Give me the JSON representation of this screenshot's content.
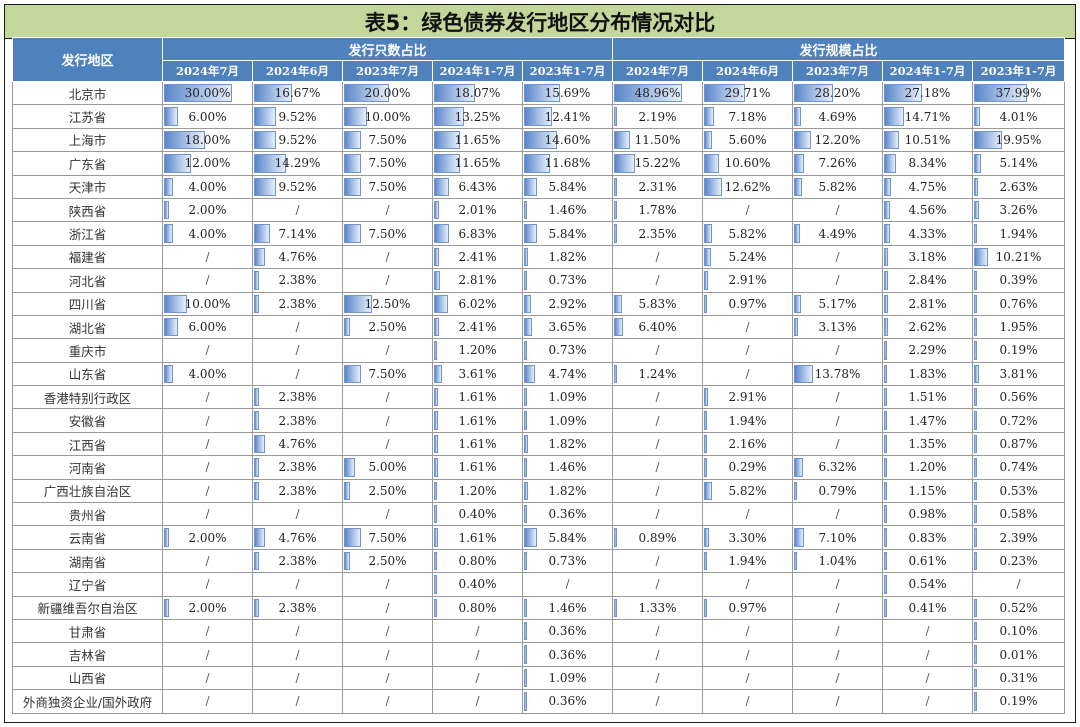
{
  "title": "表5：绿色债券发行地区分布情况对比",
  "header": {
    "region_label": "发行地区",
    "groups": [
      "发行只数占比",
      "发行规模占比"
    ],
    "periods": [
      "2024年7月",
      "2024年6月",
      "2023年7月",
      "2024年1-7月",
      "2023年1-7月"
    ]
  },
  "max": {
    "count": 30.0,
    "scale": 48.96
  },
  "rows": [
    {
      "region": "北京市",
      "count": [
        "30.00%",
        "16.67%",
        "20.00%",
        "18.07%",
        "15.69%"
      ],
      "scale": [
        "48.96%",
        "29.71%",
        "28.20%",
        "27.18%",
        "37.99%"
      ]
    },
    {
      "region": "江苏省",
      "count": [
        "6.00%",
        "9.52%",
        "10.00%",
        "13.25%",
        "12.41%"
      ],
      "scale": [
        "2.19%",
        "7.18%",
        "4.69%",
        "14.71%",
        "4.01%"
      ]
    },
    {
      "region": "上海市",
      "count": [
        "18.00%",
        "9.52%",
        "7.50%",
        "11.65%",
        "14.60%"
      ],
      "scale": [
        "11.50%",
        "5.60%",
        "12.20%",
        "10.51%",
        "19.95%"
      ]
    },
    {
      "region": "广东省",
      "count": [
        "12.00%",
        "14.29%",
        "7.50%",
        "11.65%",
        "11.68%"
      ],
      "scale": [
        "15.22%",
        "10.60%",
        "7.26%",
        "8.34%",
        "5.14%"
      ]
    },
    {
      "region": "天津市",
      "count": [
        "4.00%",
        "9.52%",
        "7.50%",
        "6.43%",
        "5.84%"
      ],
      "scale": [
        "2.31%",
        "12.62%",
        "5.82%",
        "4.75%",
        "2.63%"
      ]
    },
    {
      "region": "陕西省",
      "count": [
        "2.00%",
        "/",
        "/",
        "2.01%",
        "1.46%"
      ],
      "scale": [
        "1.78%",
        "/",
        "/",
        "4.56%",
        "3.26%"
      ]
    },
    {
      "region": "浙江省",
      "count": [
        "4.00%",
        "7.14%",
        "7.50%",
        "6.83%",
        "5.84%"
      ],
      "scale": [
        "2.35%",
        "5.82%",
        "4.49%",
        "4.33%",
        "1.94%"
      ]
    },
    {
      "region": "福建省",
      "count": [
        "/",
        "4.76%",
        "/",
        "2.41%",
        "1.82%"
      ],
      "scale": [
        "/",
        "5.24%",
        "/",
        "3.18%",
        "10.21%"
      ]
    },
    {
      "region": "河北省",
      "count": [
        "/",
        "2.38%",
        "/",
        "2.81%",
        "0.73%"
      ],
      "scale": [
        "/",
        "2.91%",
        "/",
        "2.84%",
        "0.39%"
      ]
    },
    {
      "region": "四川省",
      "count": [
        "10.00%",
        "2.38%",
        "12.50%",
        "6.02%",
        "2.92%"
      ],
      "scale": [
        "5.83%",
        "0.97%",
        "5.17%",
        "2.81%",
        "0.76%"
      ]
    },
    {
      "region": "湖北省",
      "count": [
        "6.00%",
        "/",
        "2.50%",
        "2.41%",
        "3.65%"
      ],
      "scale": [
        "6.40%",
        "/",
        "3.13%",
        "2.62%",
        "1.95%"
      ]
    },
    {
      "region": "重庆市",
      "count": [
        "/",
        "/",
        "/",
        "1.20%",
        "0.73%"
      ],
      "scale": [
        "/",
        "/",
        "/",
        "2.29%",
        "0.19%"
      ]
    },
    {
      "region": "山东省",
      "count": [
        "4.00%",
        "/",
        "7.50%",
        "3.61%",
        "4.74%"
      ],
      "scale": [
        "1.24%",
        "/",
        "13.78%",
        "1.83%",
        "3.81%"
      ]
    },
    {
      "region": "香港特别行政区",
      "count": [
        "/",
        "2.38%",
        "/",
        "1.61%",
        "1.09%"
      ],
      "scale": [
        "/",
        "2.91%",
        "/",
        "1.51%",
        "0.56%"
      ]
    },
    {
      "region": "安徽省",
      "count": [
        "/",
        "2.38%",
        "/",
        "1.61%",
        "1.09%"
      ],
      "scale": [
        "/",
        "1.94%",
        "/",
        "1.47%",
        "0.72%"
      ]
    },
    {
      "region": "江西省",
      "count": [
        "/",
        "4.76%",
        "/",
        "1.61%",
        "1.82%"
      ],
      "scale": [
        "/",
        "2.16%",
        "/",
        "1.35%",
        "0.87%"
      ]
    },
    {
      "region": "河南省",
      "count": [
        "/",
        "2.38%",
        "5.00%",
        "1.61%",
        "1.46%"
      ],
      "scale": [
        "/",
        "0.29%",
        "6.32%",
        "1.20%",
        "0.74%"
      ]
    },
    {
      "region": "广西壮族自治区",
      "count": [
        "/",
        "2.38%",
        "2.50%",
        "1.20%",
        "1.82%"
      ],
      "scale": [
        "/",
        "5.82%",
        "0.79%",
        "1.15%",
        "0.53%"
      ]
    },
    {
      "region": "贵州省",
      "count": [
        "/",
        "/",
        "/",
        "0.40%",
        "0.36%"
      ],
      "scale": [
        "/",
        "/",
        "/",
        "0.98%",
        "0.58%"
      ]
    },
    {
      "region": "云南省",
      "count": [
        "2.00%",
        "4.76%",
        "7.50%",
        "1.61%",
        "5.84%"
      ],
      "scale": [
        "0.89%",
        "3.30%",
        "7.10%",
        "0.83%",
        "2.39%"
      ]
    },
    {
      "region": "湖南省",
      "count": [
        "/",
        "2.38%",
        "2.50%",
        "0.80%",
        "0.73%"
      ],
      "scale": [
        "/",
        "1.94%",
        "1.04%",
        "0.61%",
        "0.23%"
      ]
    },
    {
      "region": "辽宁省",
      "count": [
        "/",
        "/",
        "/",
        "0.40%",
        "/"
      ],
      "scale": [
        "/",
        "/",
        "/",
        "0.54%",
        "/"
      ]
    },
    {
      "region": "新疆维吾尔自治区",
      "count": [
        "2.00%",
        "2.38%",
        "/",
        "0.80%",
        "1.46%"
      ],
      "scale": [
        "1.33%",
        "0.97%",
        "/",
        "0.41%",
        "0.52%"
      ]
    },
    {
      "region": "甘肃省",
      "count": [
        "/",
        "/",
        "/",
        "/",
        "0.36%"
      ],
      "scale": [
        "/",
        "/",
        "/",
        "/",
        "0.10%"
      ]
    },
    {
      "region": "吉林省",
      "count": [
        "/",
        "/",
        "/",
        "/",
        "0.36%"
      ],
      "scale": [
        "/",
        "/",
        "/",
        "/",
        "0.01%"
      ]
    },
    {
      "region": "山西省",
      "count": [
        "/",
        "/",
        "/",
        "/",
        "1.09%"
      ],
      "scale": [
        "/",
        "/",
        "/",
        "/",
        "0.31%"
      ]
    },
    {
      "region": "外商独资企业/国外政府",
      "count": [
        "/",
        "/",
        "/",
        "/",
        "0.36%"
      ],
      "scale": [
        "/",
        "/",
        "/",
        "/",
        "0.19%"
      ]
    }
  ]
}
